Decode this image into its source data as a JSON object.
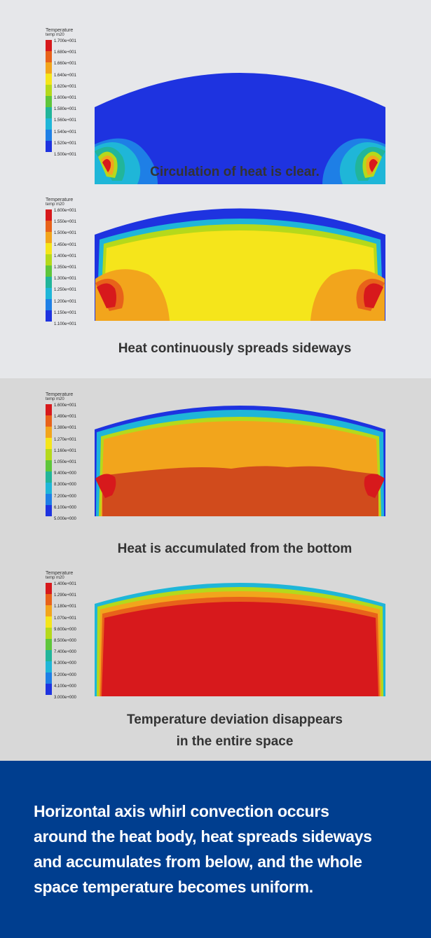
{
  "colormap": [
    "#d7191c",
    "#e8621a",
    "#f2a51c",
    "#f5e51b",
    "#b5d91b",
    "#5ec63b",
    "#21b59a",
    "#1fb6d8",
    "#1e7fe6",
    "#1e33e0"
  ],
  "panels": [
    {
      "legend_title": "Temperature",
      "legend_sub": "temp m20",
      "ticks": [
        "1.700e+001",
        "1.680e+001",
        "1.660e+001",
        "1.640e+001",
        "1.620e+001",
        "1.600e+001",
        "1.580e+001",
        "1.560e+001",
        "1.540e+001",
        "1.520e+001",
        "1.500e+001"
      ],
      "caption": "Circulation of heat is clear.",
      "state": "circulation"
    },
    {
      "legend_title": "Temperature",
      "legend_sub": "temp m20",
      "ticks": [
        "1.600e+001",
        "1.550e+001",
        "1.500e+001",
        "1.450e+001",
        "1.400e+001",
        "1.350e+001",
        "1.300e+001",
        "1.250e+001",
        "1.200e+001",
        "1.150e+001",
        "1.100e+001"
      ],
      "caption": "Heat continuously spreads sideways",
      "state": "spread"
    },
    {
      "legend_title": "Temperature",
      "legend_sub": "temp m20",
      "ticks": [
        "1.600e+001",
        "1.490e+001",
        "1.380e+001",
        "1.270e+001",
        "1.160e+001",
        "1.050e+001",
        "9.400e+000",
        "8.300e+000",
        "7.200e+000",
        "6.100e+000",
        "5.000e+000"
      ],
      "caption": "Heat is accumulated from the bottom",
      "state": "accumulate"
    },
    {
      "legend_title": "Temperature",
      "legend_sub": "temp m20",
      "ticks": [
        "1.400e+001",
        "1.290e+001",
        "1.180e+001",
        "1.070e+001",
        "9.600e+000",
        "8.500e+000",
        "7.400e+000",
        "6.300e+000",
        "5.200e+000",
        "4.100e+000",
        "3.000e+000"
      ],
      "caption_line1": "Temperature deviation disappears",
      "caption_line2": "in the entire space",
      "state": "uniform"
    }
  ],
  "summary": {
    "line1": "Horizontal axis whirl convection occurs",
    "line2": "around the heat body, heat spreads sideways",
    "line3": "and accumulates from below, and the whole",
    "line4": "space temperature becomes uniform."
  }
}
